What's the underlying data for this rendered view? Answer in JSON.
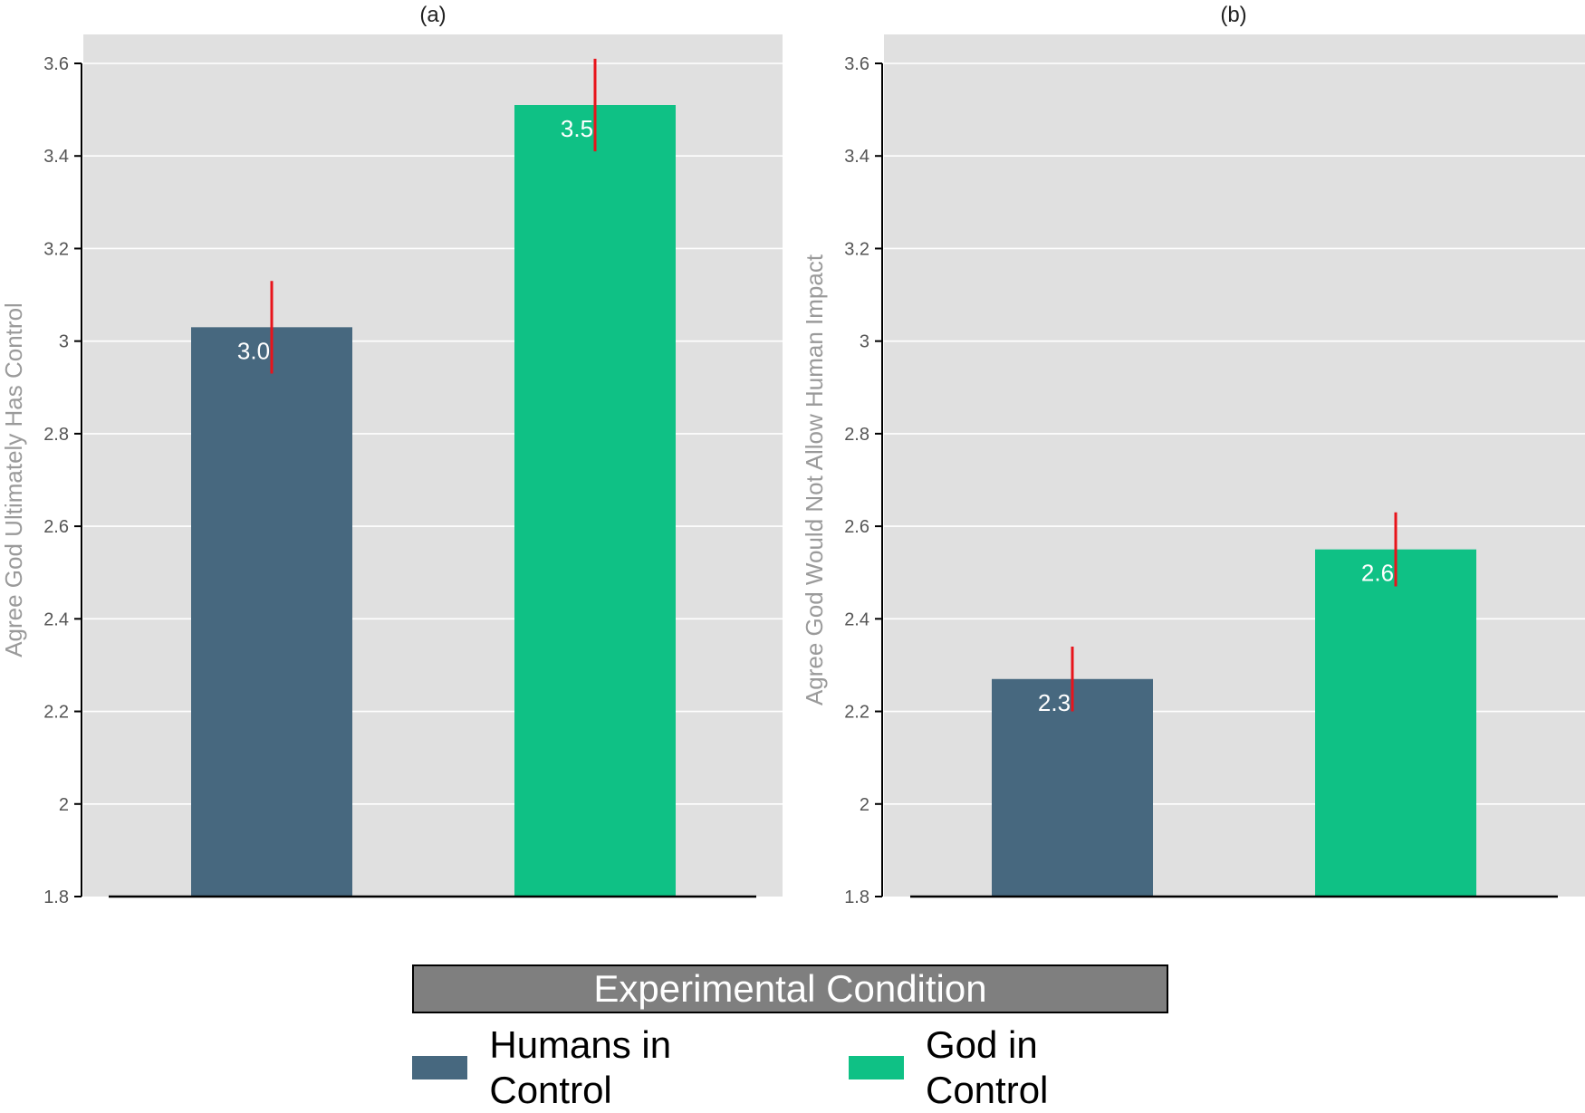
{
  "colors": {
    "humans": "#47687f",
    "god": "#0fc185",
    "error_bar": "#e8141b",
    "panel_bg": "#e0e0e0",
    "grid": "#ffffff"
  },
  "legend": {
    "title": "Experimental Condition",
    "items": [
      {
        "label": "Humans in Control",
        "color": "#47687f"
      },
      {
        "label": "God in Control",
        "color": "#0fc185"
      }
    ]
  },
  "chart_data": [
    {
      "type": "bar",
      "title": "(a)",
      "ylabel": "Agree God Ultimately Has Control",
      "ylim": [
        1.8,
        3.65
      ],
      "yticks": [
        1.8,
        2.0,
        2.2,
        2.4,
        2.6,
        2.8,
        3.0,
        3.2,
        3.4,
        3.6
      ],
      "ytick_labels": [
        "1.8",
        "2",
        "2.2",
        "2.4",
        "2.6",
        "2.8",
        "3",
        "3.2",
        "3.4",
        "3.6"
      ],
      "grid": true,
      "categories": [
        "Humans in Control",
        "God in Control"
      ],
      "values": [
        3.03,
        3.51
      ],
      "error_low": [
        2.93,
        3.41
      ],
      "error_high": [
        3.13,
        3.61
      ],
      "data_labels": [
        "3.0",
        "3.5"
      ]
    },
    {
      "type": "bar",
      "title": "(b)",
      "ylabel": "Agree God Would Not Allow Human Impact",
      "ylim": [
        1.8,
        3.65
      ],
      "yticks": [
        1.8,
        2.0,
        2.2,
        2.4,
        2.6,
        2.8,
        3.0,
        3.2,
        3.4,
        3.6
      ],
      "ytick_labels": [
        "1.8",
        "2",
        "2.2",
        "2.4",
        "2.6",
        "2.8",
        "3",
        "3.2",
        "3.4",
        "3.6"
      ],
      "grid": true,
      "categories": [
        "Humans in Control",
        "God in Control"
      ],
      "values": [
        2.27,
        2.55
      ],
      "error_low": [
        2.2,
        2.47
      ],
      "error_high": [
        2.34,
        2.63
      ],
      "data_labels": [
        "2.3",
        "2.6"
      ]
    }
  ]
}
